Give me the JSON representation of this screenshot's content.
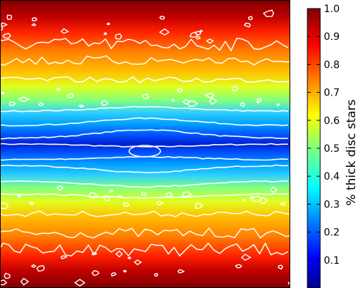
{
  "chart_data": {
    "type": "heatmap",
    "title": "",
    "xlabel": "",
    "ylabel": "",
    "grid": false,
    "colormap": "jet",
    "contour_color": "#ffffff",
    "z_range": [
      0.0,
      1.0
    ],
    "description_of_field": "horizontally banded fraction field: minimum (~0.0-0.1) at vertical centre, rising to ~1.0 at top and bottom edges",
    "colorbar": {
      "label": "% thick disc stars",
      "min": 0.0,
      "max": 1.0,
      "ticks": [
        0.1,
        0.2,
        0.3,
        0.4,
        0.5,
        0.6,
        0.7,
        0.8,
        0.9,
        1.0
      ],
      "tick_labels": [
        "0.1",
        "0.2",
        "0.3",
        "0.4",
        "0.5",
        "0.6",
        "0.7",
        "0.8",
        "0.9",
        "1.0"
      ]
    },
    "contour_levels": [
      0.1,
      0.2,
      0.3,
      0.4,
      0.5,
      0.6,
      0.7,
      0.8,
      0.9
    ],
    "bands": [
      {
        "name": "top edge",
        "value": 1.0
      },
      {
        "name": "upper noisy",
        "value": 0.82
      },
      {
        "name": "upper middle",
        "value": 0.62
      },
      {
        "name": "upper inner",
        "value": 0.45
      },
      {
        "name": "centre",
        "value": 0.08
      },
      {
        "name": "lower inner",
        "value": 0.45
      },
      {
        "name": "lower middle",
        "value": 0.62
      },
      {
        "name": "lower noisy",
        "value": 0.82
      },
      {
        "name": "bottom edge",
        "value": 1.0
      }
    ]
  }
}
